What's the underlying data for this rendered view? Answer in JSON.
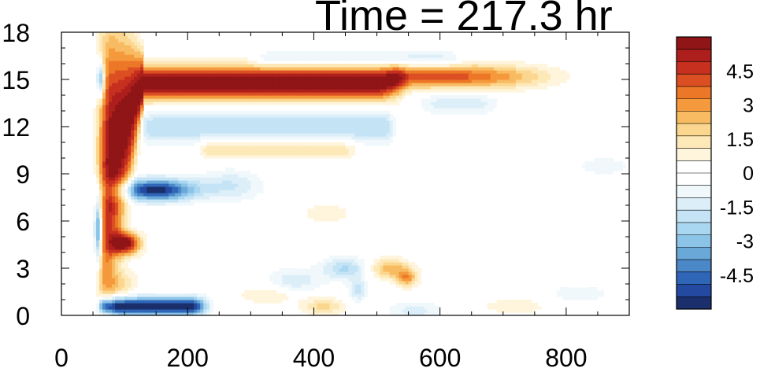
{
  "chart_data": {
    "type": "heatmap",
    "title": "Time = 217.3 hr",
    "xlabel": "",
    "ylabel": "",
    "xlim": [
      0,
      900
    ],
    "ylim": [
      0,
      18
    ],
    "x_ticks": [
      0,
      200,
      400,
      600,
      800
    ],
    "y_ticks": [
      0,
      3,
      6,
      9,
      12,
      15,
      18
    ],
    "colorbar": {
      "range": [
        -6,
        6
      ],
      "step": 0.5,
      "tick_labels": [
        "4.5",
        "3",
        "1.5",
        "0",
        "-1.5",
        "-3",
        "-4.5"
      ],
      "tick_values": [
        4.5,
        3,
        1.5,
        0,
        -1.5,
        -3,
        -4.5
      ],
      "colors": [
        "#1a2f6b",
        "#234aa0",
        "#2f66b8",
        "#4a88c8",
        "#6aa8d8",
        "#8cc4e8",
        "#a9d6f0",
        "#c4e4f6",
        "#dceff9",
        "#f0f8fc",
        "#ffffff",
        "#ffffff",
        "#fff5dc",
        "#fde9b8",
        "#fbd68e",
        "#f8bb62",
        "#f59a3c",
        "#ec7727",
        "#dc4f23",
        "#c7301f",
        "#ad1f1c",
        "#8f1516"
      ]
    },
    "features": [
      {
        "name": "positive-band-upper",
        "x": [
          110,
          530
        ],
        "y": 14.8,
        "peak": 6.0
      },
      {
        "name": "positive-band-tail",
        "x": [
          530,
          850
        ],
        "y": 15.2,
        "peak": 3.0
      },
      {
        "name": "negative-band-12",
        "x": [
          130,
          530
        ],
        "y": 12.0,
        "peak": -2.0
      },
      {
        "name": "negative-band-16",
        "x": [
          300,
          640
        ],
        "y": 16.3,
        "peak": -1.5
      },
      {
        "name": "positive-band-10",
        "x": [
          220,
          480
        ],
        "y": 10.6,
        "peak": 1.8
      },
      {
        "name": "negative-band-8",
        "x": [
          80,
          230
        ],
        "y": 8.0,
        "peak": -5.5
      },
      {
        "name": "positive-spot-4.5",
        "x": [
          80,
          130
        ],
        "y": 4.5,
        "peak": 5.5
      },
      {
        "name": "negative-band-0.5",
        "x": [
          50,
          240
        ],
        "y": 0.6,
        "peak": -6.0
      },
      {
        "name": "negative-spots-2.5",
        "x": [
          320,
          480
        ],
        "y": 2.7,
        "peak": -2.0
      },
      {
        "name": "positive-spots-2.5",
        "x": [
          490,
          600
        ],
        "y": 2.7,
        "peak": 2.5
      }
    ]
  }
}
